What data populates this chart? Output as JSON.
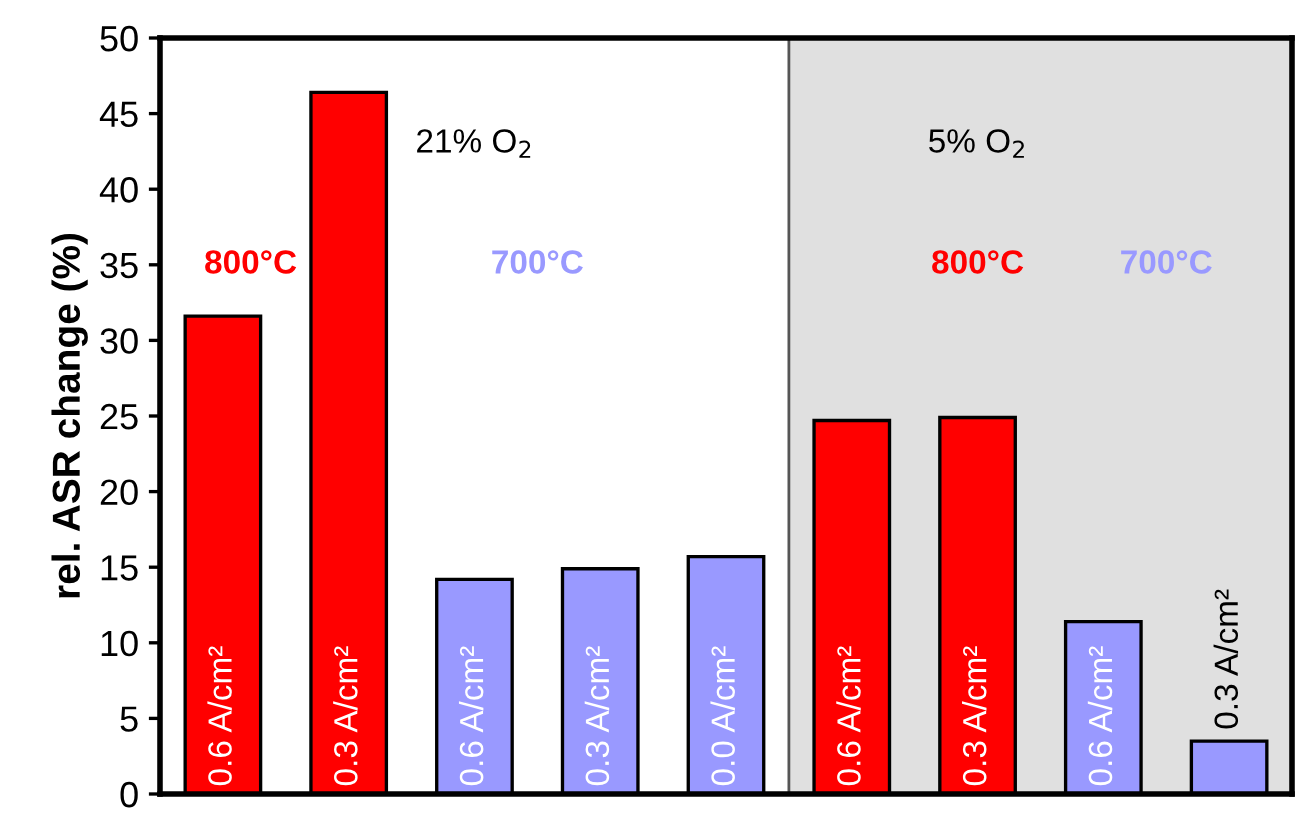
{
  "chart_data": {
    "type": "bar",
    "ylabel": "rel. ASR change (%)",
    "categories": [
      "0.6 A/cm²",
      "0.3 A/cm²",
      "0.6 A/cm²",
      "0.3 A/cm²",
      "0.0 A/cm²",
      "0.6 A/cm²",
      "0.3 A/cm²",
      "0.6 A/cm²",
      "0.3 A/cm²"
    ],
    "values": [
      31.6,
      46.4,
      14.2,
      14.9,
      15.7,
      24.7,
      24.9,
      11.4,
      3.5
    ],
    "colors": [
      "#ff0000",
      "#ff0000",
      "#9999ff",
      "#9999ff",
      "#9999ff",
      "#ff0000",
      "#ff0000",
      "#9999ff",
      "#9999ff"
    ],
    "ylim": [
      0,
      50
    ],
    "yticks": [
      0,
      5,
      10,
      15,
      20,
      25,
      30,
      35,
      40,
      45,
      50
    ],
    "annotations": [
      "21% O$_{2}$",
      "800°C",
      "700°C",
      "5% O$_{2}$",
      "800°C",
      "700°C"
    ],
    "grid": false,
    "legend": false
  }
}
